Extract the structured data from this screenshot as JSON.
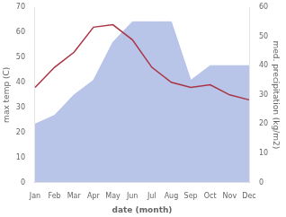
{
  "chart_data": {
    "type": "line",
    "categories": [
      "Jan",
      "Feb",
      "Mar",
      "Apr",
      "May",
      "Jun",
      "Jul",
      "Aug",
      "Sep",
      "Oct",
      "Nov",
      "Dec"
    ],
    "series": [
      {
        "type": "area",
        "color": "#b8c4e8",
        "axis": "y2",
        "values": [
          20,
          23,
          30,
          35,
          48,
          55,
          55,
          55,
          35,
          40,
          40,
          40
        ]
      },
      {
        "type": "line",
        "color": "#aa3344",
        "values": [
          38,
          46,
          52,
          62,
          63,
          57,
          46,
          40,
          38,
          39,
          35,
          33
        ]
      }
    ],
    "xlabel": "date (month)",
    "ylabel": "max temp (C)",
    "y2label": "med. precipitation (kg/m2)",
    "ylim": [
      0,
      70
    ],
    "yticks": [
      0,
      10,
      20,
      30,
      40,
      50,
      60,
      70
    ],
    "y2lim": [
      0,
      60
    ],
    "y2ticks": [
      0,
      10,
      20,
      30,
      40,
      50,
      60
    ],
    "grid": false
  }
}
